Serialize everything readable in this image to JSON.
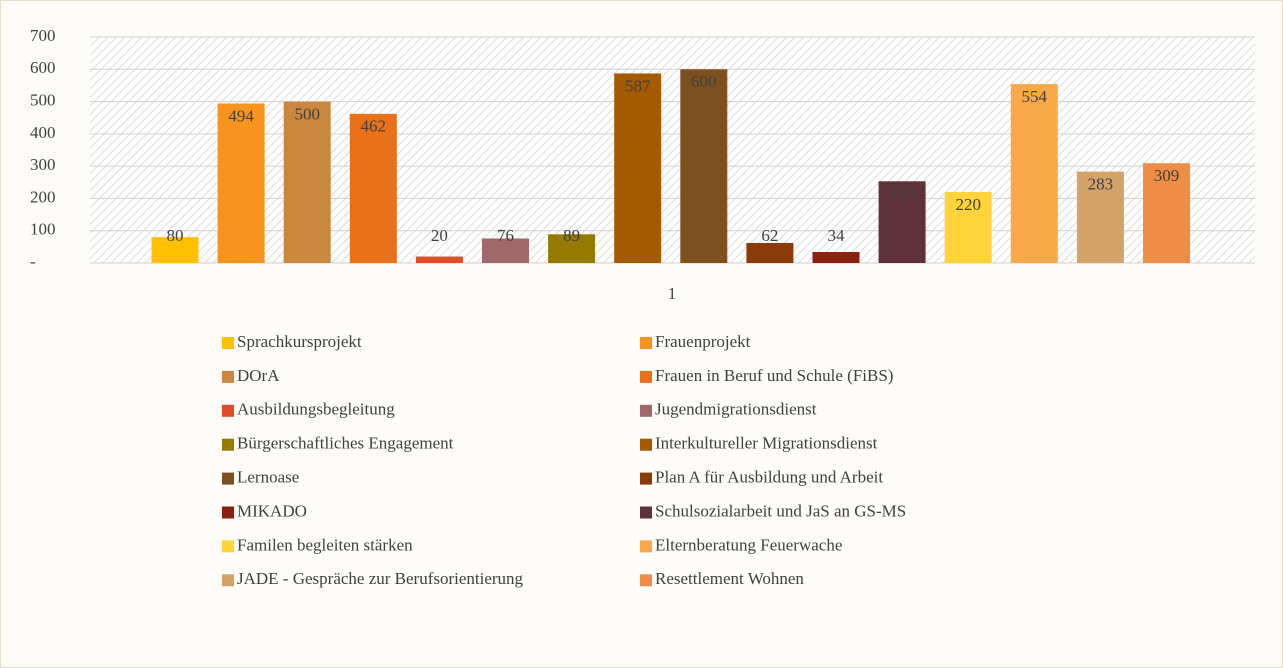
{
  "chart_data": {
    "type": "bar",
    "categories": [
      "1"
    ],
    "ylim": [
      0,
      700
    ],
    "yticks": [
      {
        "value": 0,
        "label": "-"
      },
      100,
      200,
      300,
      400,
      500,
      600,
      700
    ],
    "grid": true,
    "legend": "bottom",
    "series": [
      {
        "name": "Sprachkursprojekt",
        "color": "#FFC000",
        "values": [
          80
        ]
      },
      {
        "name": "Frauenprojekt",
        "color": "#F7941D",
        "values": [
          494
        ]
      },
      {
        "name": "DOrA",
        "color": "#C9883E",
        "values": [
          500
        ]
      },
      {
        "name": "Frauen in Beruf und Schule (FiBS)",
        "color": "#E8711A",
        "values": [
          462
        ]
      },
      {
        "name": "Ausbildungsbegleitung",
        "color": "#E04E25",
        "values": [
          20
        ]
      },
      {
        "name": "Jugendmigrationsdienst",
        "color": "#A0686A",
        "values": [
          76
        ]
      },
      {
        "name": "Bürgerschaftliches Engagement",
        "color": "#947A00",
        "values": [
          89
        ]
      },
      {
        "name": "Interkultureller Migrationsdienst",
        "color": "#A35A00",
        "values": [
          587
        ]
      },
      {
        "name": "Lernoase",
        "color": "#7D5020",
        "values": [
          600
        ]
      },
      {
        "name": "Plan A für Ausbildung und Arbeit",
        "color": "#8B3A0A",
        "values": [
          62
        ]
      },
      {
        "name": "MIKADO",
        "color": "#8B2010",
        "values": [
          34
        ]
      },
      {
        "name": "Schulsozialarbeit und JaS an GS-MS",
        "color": "#5E3238",
        "values": [
          253
        ]
      },
      {
        "name": "Familen begleiten stärken",
        "color": "#FFD43B",
        "values": [
          220
        ]
      },
      {
        "name": "Elternberatung Feuerwache",
        "color": "#F9A84A",
        "values": [
          554
        ]
      },
      {
        "name": "JADE - Gespräche zur Berufsorientierung",
        "color": "#D4A36A",
        "values": [
          283
        ]
      },
      {
        "name": "Resettlement Wohnen",
        "color": "#EF8C45",
        "values": [
          309
        ]
      }
    ]
  }
}
